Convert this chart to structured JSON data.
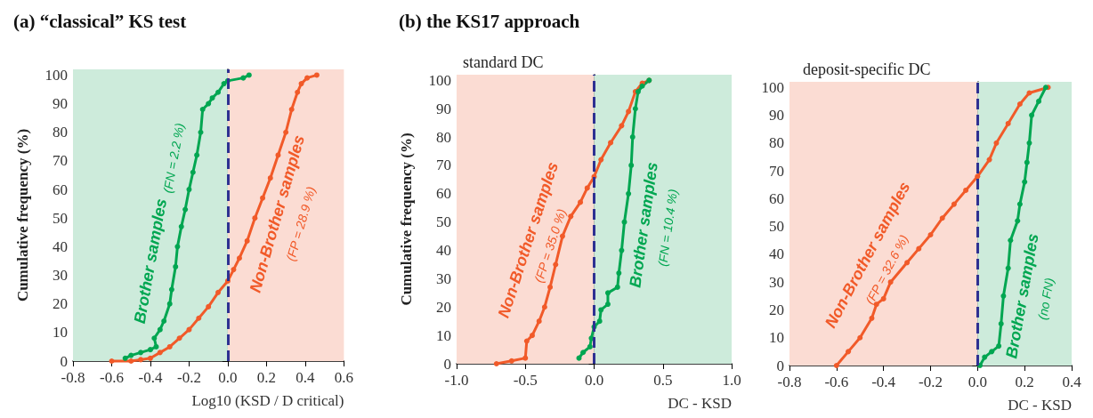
{
  "chart_data": [
    {
      "type": "line",
      "title": "(a) “classical” KS test",
      "xlabel": "Log10 (KSD / D critical)",
      "ylabel": "Cumulative frequency (%)",
      "marker": "circle",
      "xlim": [
        -0.8,
        0.6
      ],
      "xticks": [
        -0.8,
        -0.6,
        -0.4,
        -0.2,
        {
          "value": 0,
          "label": "0.0"
        },
        0.2,
        0.4,
        0.6
      ],
      "ylim": [
        0,
        102
      ],
      "yticks": [
        0,
        10,
        20,
        30,
        40,
        50,
        60,
        70,
        80,
        90,
        100
      ],
      "bands": [
        {
          "axis": "x",
          "from": -0.8,
          "to": 0,
          "color": "#cdebdb"
        },
        {
          "axis": "x",
          "from": 0,
          "to": 0.6,
          "color": "#fbdcd3"
        }
      ],
      "ref_lines": [
        {
          "axis": "x",
          "value": 0,
          "color": "#2e3192",
          "line_style": "dashed"
        }
      ],
      "annotations": [
        "(FN = 2.2 %)",
        "(FP = 28.9 %)"
      ],
      "series": [
        {
          "name": "Brother samples",
          "color": "#00a651",
          "x": [
            -0.53,
            -0.5,
            -0.45,
            -0.4,
            -0.37,
            -0.38,
            -0.35,
            -0.33,
            -0.3,
            -0.29,
            -0.27,
            -0.26,
            -0.24,
            -0.22,
            -0.2,
            -0.18,
            -0.16,
            -0.14,
            -0.13,
            -0.1,
            -0.08,
            -0.05,
            -0.02,
            0.0,
            0.08,
            0.11
          ],
          "values": [
            1,
            2,
            3,
            4,
            5,
            8,
            11,
            14,
            20,
            25,
            33,
            40,
            47,
            53,
            60,
            66,
            72,
            80,
            88,
            90,
            92,
            94,
            97,
            98,
            99,
            100
          ]
        },
        {
          "name": "Non-Brother samples",
          "color": "#f15a29",
          "x": [
            -0.6,
            -0.5,
            -0.45,
            -0.4,
            -0.35,
            -0.3,
            -0.25,
            -0.2,
            -0.15,
            -0.1,
            -0.05,
            0,
            0.03,
            0.06,
            0.1,
            0.14,
            0.18,
            0.22,
            0.26,
            0.3,
            0.33,
            0.36,
            0.38,
            0.41,
            0.46
          ],
          "values": [
            0,
            0,
            0.5,
            1,
            3,
            5,
            8,
            11,
            15,
            19,
            24,
            28,
            32,
            36,
            42,
            50,
            57,
            64,
            72,
            80,
            88,
            94,
            97,
            99,
            100
          ]
        }
      ]
    },
    {
      "type": "line",
      "title": "(b) the KS17 approach",
      "subtitle": "standard DC",
      "xlabel": "DC - KSD",
      "ylabel": "Cumulative frequency (%)",
      "marker": "circle",
      "xlim": [
        -1,
        1
      ],
      "xticks": [
        {
          "value": -1,
          "label": "-1.0"
        },
        -0.5,
        {
          "value": 0,
          "label": "0.0"
        },
        0.5,
        {
          "value": 1,
          "label": "1.0"
        }
      ],
      "ylim": [
        0,
        102
      ],
      "yticks": [
        0,
        10,
        20,
        30,
        40,
        50,
        60,
        70,
        80,
        90,
        100
      ],
      "bands": [
        {
          "axis": "x",
          "from": -1,
          "to": 0,
          "color": "#fbdcd3"
        },
        {
          "axis": "x",
          "from": 0,
          "to": 1,
          "color": "#cdebdb"
        }
      ],
      "ref_lines": [
        {
          "axis": "x",
          "value": 0,
          "color": "#2e3192",
          "line_style": "dashed"
        }
      ],
      "annotations": [
        "(FP = 35.0 %)",
        "(FN = 10.4 %)"
      ],
      "series": [
        {
          "name": "Non-Brother samples",
          "color": "#f15a29",
          "x": [
            -0.71,
            -0.6,
            -0.5,
            -0.49,
            -0.45,
            -0.4,
            -0.36,
            -0.32,
            -0.28,
            -0.23,
            -0.17,
            -0.1,
            -0.05,
            0,
            0.05,
            0.12,
            0.2,
            0.25,
            0.3,
            0.35,
            0.4
          ],
          "values": [
            0,
            1,
            2,
            8,
            10,
            15,
            20,
            27,
            35,
            45,
            52,
            57,
            62,
            66,
            72,
            78,
            84,
            89,
            96,
            99,
            100
          ]
        },
        {
          "name": "Brother samples",
          "color": "#00a651",
          "x": [
            -0.11,
            -0.08,
            -0.03,
            -0.02,
            0,
            0.04,
            0.05,
            0.1,
            0.1,
            0.17,
            0.18,
            0.2,
            0.22,
            0.25,
            0.27,
            0.28,
            0.3,
            0.32,
            0.35,
            0.4
          ],
          "values": [
            2,
            4,
            6,
            9,
            13,
            15,
            19,
            21,
            25,
            27,
            32,
            40,
            50,
            60,
            70,
            80,
            90,
            96,
            98,
            100
          ]
        }
      ]
    },
    {
      "type": "line",
      "subtitle": "deposit-specific DC",
      "xlabel": "DC - KSD",
      "marker": "circle",
      "xlim": [
        -0.8,
        0.4
      ],
      "xticks": [
        -0.8,
        -0.6,
        -0.4,
        -0.2,
        {
          "value": 0,
          "label": "0.0"
        },
        0.2,
        0.4
      ],
      "ylim": [
        0,
        102
      ],
      "yticks": [
        0,
        10,
        20,
        30,
        40,
        50,
        60,
        70,
        80,
        90,
        100
      ],
      "bands": [
        {
          "axis": "x",
          "from": -0.8,
          "to": 0,
          "color": "#fbdcd3"
        },
        {
          "axis": "x",
          "from": 0,
          "to": 0.4,
          "color": "#cdebdb"
        }
      ],
      "ref_lines": [
        {
          "axis": "x",
          "value": 0,
          "color": "#2e3192",
          "line_style": "dashed"
        }
      ],
      "annotations": [
        "(FP = 32.6 %)",
        "(no FN)"
      ],
      "series": [
        {
          "name": "Non-Brother samples",
          "color": "#f15a29",
          "x": [
            -0.6,
            -0.55,
            -0.5,
            -0.45,
            -0.43,
            -0.4,
            -0.37,
            -0.3,
            -0.25,
            -0.2,
            -0.15,
            -0.1,
            -0.05,
            0,
            0.05,
            0.08,
            0.13,
            0.18,
            0.22,
            0.3
          ],
          "values": [
            0,
            5,
            10,
            17,
            22,
            24,
            30,
            37,
            42,
            47,
            53,
            58,
            63,
            68,
            74,
            80,
            87,
            94,
            98,
            100
          ]
        },
        {
          "name": "Brother samples",
          "color": "#00a651",
          "x": [
            0.01,
            0.03,
            0.06,
            0.09,
            0.1,
            0.11,
            0.13,
            0.14,
            0.17,
            0.18,
            0.2,
            0.21,
            0.22,
            0.23,
            0.26,
            0.29
          ],
          "values": [
            0,
            3,
            5,
            7,
            15,
            25,
            35,
            45,
            52,
            58,
            66,
            73,
            80,
            90,
            95,
            100
          ]
        }
      ]
    }
  ]
}
